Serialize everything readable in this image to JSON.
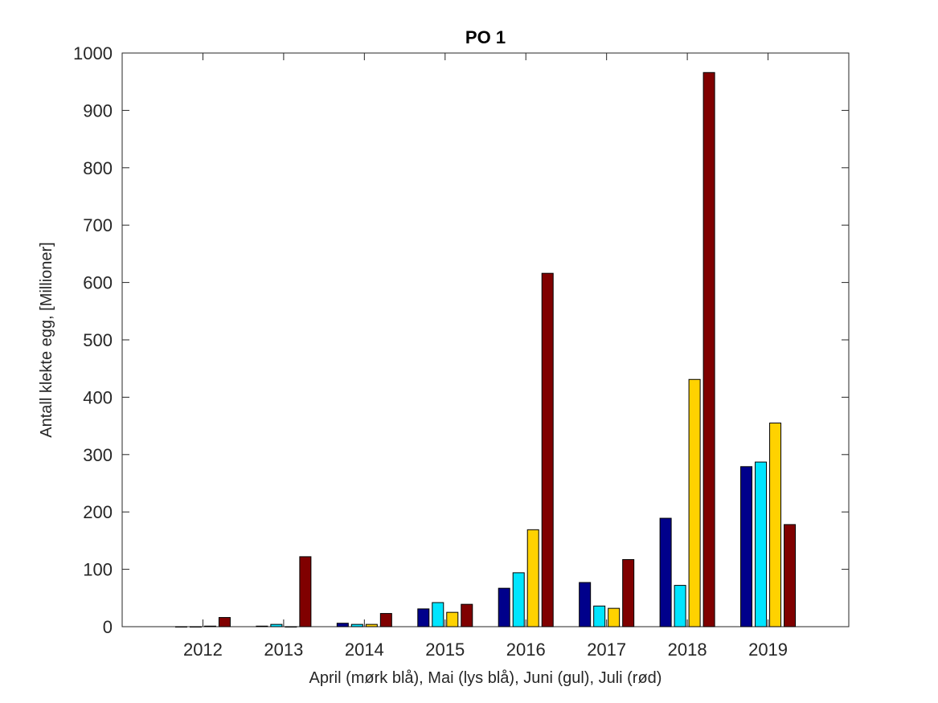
{
  "chart_data": {
    "type": "bar",
    "title": "PO 1",
    "xlabel": "April (mørk blå), Mai (lys blå), Juni (gul), Juli (rød)",
    "ylabel": "Antall klekte egg, [Millioner]",
    "categories": [
      "2012",
      "2013",
      "2014",
      "2015",
      "2016",
      "2017",
      "2018",
      "2019"
    ],
    "xlim": [
      2011,
      2020
    ],
    "ylim": [
      0,
      1000
    ],
    "yticks": [
      0,
      100,
      200,
      300,
      400,
      500,
      600,
      700,
      800,
      900,
      1000
    ],
    "grid": false,
    "series": [
      {
        "name": "April",
        "color": "#00008b",
        "values": [
          0,
          1,
          6,
          31,
          67,
          77,
          189,
          279
        ]
      },
      {
        "name": "Mai",
        "color": "#00e5ff",
        "values": [
          0,
          4,
          4,
          42,
          94,
          36,
          72,
          287
        ]
      },
      {
        "name": "Juni",
        "color": "#ffd200",
        "values": [
          1,
          0,
          4,
          25,
          169,
          32,
          431,
          355
        ]
      },
      {
        "name": "Juli",
        "color": "#800000",
        "values": [
          16,
          122,
          23,
          39,
          616,
          117,
          966,
          178
        ]
      }
    ]
  }
}
